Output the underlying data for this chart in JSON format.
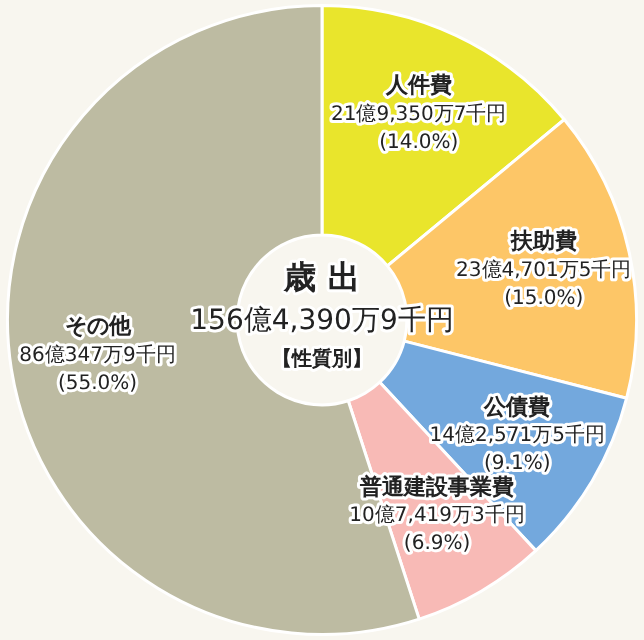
{
  "chart_data": {
    "type": "donut",
    "title": "歳 出",
    "subtitle": "156億4,390万9千円",
    "annotations": [
      "【性質別】"
    ],
    "categories": [
      "人件費",
      "扶助費",
      "公債費",
      "普通建設事業費",
      "その他"
    ],
    "values": [
      14.0,
      15.0,
      9.1,
      6.9,
      55.0
    ],
    "colors": [
      "#e9e52c",
      "#fdc667",
      "#73a8dd",
      "#f8bab6",
      "#bdbba2"
    ],
    "value_labels": [
      "21億9,350万7千円\n(14.0%)",
      "23億4,701万5千円\n(15.0%)",
      "14億2,571万5千円\n(9.1%)",
      "10億7,419万3千円\n(6.9%)",
      "86億347万9千円\n(55.0%)"
    ],
    "legend": false
  }
}
